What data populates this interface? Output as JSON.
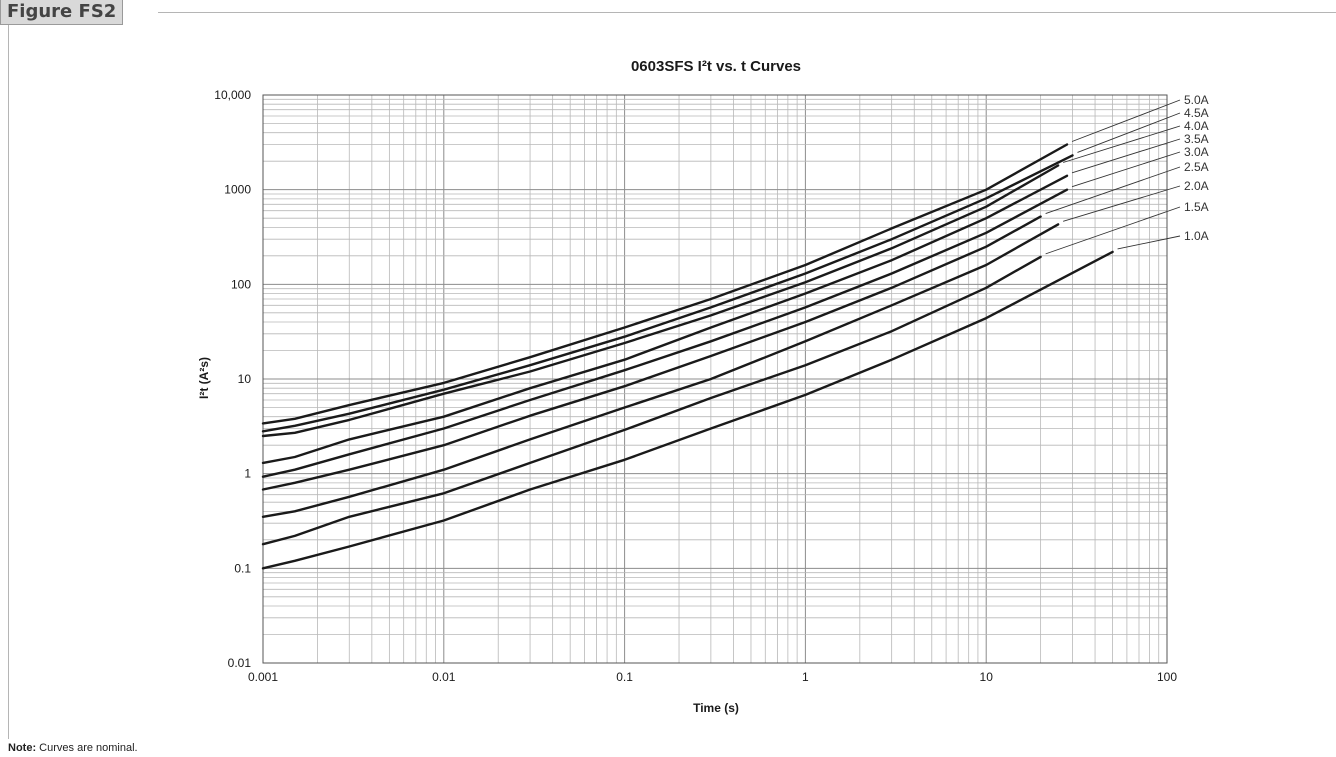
{
  "figure": {
    "label": "Figure FS2"
  },
  "note": {
    "label": "Note:",
    "text": "Curves are nominal."
  },
  "chart_data": {
    "type": "line",
    "title": "0603SFS I²t  vs. t Curves",
    "xlabel": "Time (s)",
    "ylabel": "I²t (A²s)",
    "xscale": "log",
    "yscale": "log",
    "xlim": [
      0.001,
      100
    ],
    "ylim": [
      0.01,
      10000
    ],
    "xticks": [
      "0.001",
      "0.01",
      "0.1",
      "1",
      "10",
      "100"
    ],
    "yticks": [
      "10,000",
      "1000",
      "100",
      "10",
      "1",
      "0.1",
      "0.01"
    ],
    "grid": true,
    "legend": "series labels at right end of curves with leader lines",
    "series": [
      {
        "name": "5.0A",
        "x": [
          0.001,
          0.0015,
          0.003,
          0.01,
          0.03,
          0.1,
          0.3,
          1,
          3,
          10,
          28
        ],
        "y": [
          3.4,
          3.8,
          5.3,
          9.1,
          17,
          35,
          70,
          160,
          390,
          1000,
          3000
        ]
      },
      {
        "name": "4.5A",
        "x": [
          0.001,
          0.0015,
          0.003,
          0.01,
          0.03,
          0.1,
          0.3,
          1,
          3,
          10,
          30
        ],
        "y": [
          2.8,
          3.2,
          4.3,
          7.7,
          14,
          28,
          57,
          130,
          300,
          810,
          2300
        ]
      },
      {
        "name": "4.0A",
        "x": [
          0.001,
          0.0015,
          0.003,
          0.01,
          0.03,
          0.1,
          0.3,
          1,
          3,
          10,
          25
        ],
        "y": [
          2.5,
          2.7,
          3.7,
          7,
          12,
          24,
          47,
          105,
          240,
          660,
          1800
        ]
      },
      {
        "name": "3.5A",
        "x": [
          0.001,
          0.0015,
          0.003,
          0.01,
          0.03,
          0.1,
          0.3,
          1,
          3,
          10,
          28
        ],
        "y": [
          1.3,
          1.5,
          2.3,
          4,
          8,
          16,
          35,
          80,
          180,
          500,
          1400
        ]
      },
      {
        "name": "3.0A",
        "x": [
          0.001,
          0.0015,
          0.003,
          0.01,
          0.03,
          0.1,
          0.3,
          1,
          3,
          10,
          28
        ],
        "y": [
          0.93,
          1.1,
          1.6,
          3,
          6,
          12.4,
          25,
          57,
          130,
          350,
          1000
        ]
      },
      {
        "name": "2.5A",
        "x": [
          0.001,
          0.0015,
          0.003,
          0.01,
          0.03,
          0.1,
          0.3,
          1,
          3,
          10,
          20
        ],
        "y": [
          0.68,
          0.8,
          1.1,
          2,
          4.1,
          8.4,
          17.5,
          40,
          92,
          250,
          520
        ]
      },
      {
        "name": "2.0A",
        "x": [
          0.001,
          0.0015,
          0.003,
          0.01,
          0.03,
          0.1,
          0.3,
          1,
          3,
          10,
          25
        ],
        "y": [
          0.35,
          0.4,
          0.57,
          1.1,
          2.3,
          5,
          10,
          25,
          60,
          160,
          430
        ]
      },
      {
        "name": "1.5A",
        "x": [
          0.001,
          0.0015,
          0.003,
          0.01,
          0.03,
          0.1,
          0.3,
          1,
          3,
          10,
          20
        ],
        "y": [
          0.18,
          0.22,
          0.35,
          0.62,
          1.3,
          2.9,
          6.3,
          14,
          32,
          92,
          195
        ]
      },
      {
        "name": "1.0A",
        "x": [
          0.001,
          0.0015,
          0.003,
          0.01,
          0.03,
          0.1,
          0.3,
          1,
          3,
          10,
          50
        ],
        "y": [
          0.1,
          0.12,
          0.17,
          0.32,
          0.68,
          1.4,
          3,
          6.8,
          16,
          44,
          220
        ]
      }
    ]
  }
}
